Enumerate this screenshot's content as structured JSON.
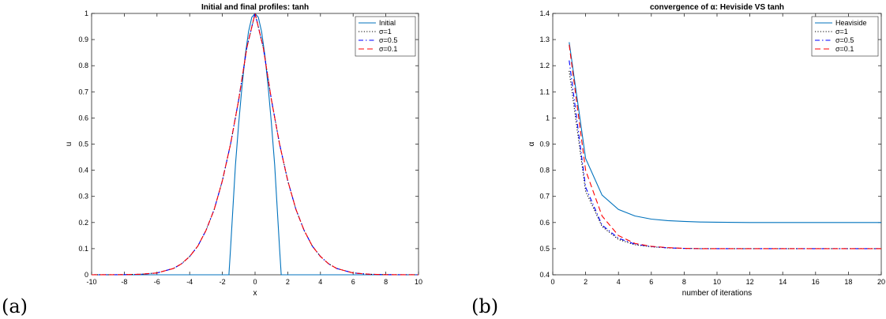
{
  "panel_labels": [
    "(a)",
    "(b)"
  ],
  "chart_data": [
    {
      "type": "line",
      "title": "Initial and final profiles: tanh",
      "xlabel": "x",
      "ylabel": "u",
      "xlim": [
        -10,
        10
      ],
      "ylim": [
        0,
        1
      ],
      "xticks": [
        -10,
        -8,
        -6,
        -4,
        -2,
        0,
        2,
        4,
        6,
        8,
        10
      ],
      "yticks": [
        0,
        0.1,
        0.2,
        0.3,
        0.4,
        0.5,
        0.6,
        0.7,
        0.8,
        0.9,
        1
      ],
      "grid": false,
      "legend_position": "top-right",
      "series": [
        {
          "name": "Initial",
          "color": "#0072BD",
          "dash": "solid",
          "x": [
            -10,
            -1.6,
            -1.5,
            -1.2,
            -1.0,
            -0.8,
            -0.6,
            -0.4,
            -0.2,
            0,
            0.2,
            0.4,
            0.6,
            0.8,
            1.0,
            1.2,
            1.5,
            1.6,
            10
          ],
          "y": [
            0,
            0,
            0.1,
            0.42,
            0.58,
            0.72,
            0.84,
            0.93,
            0.985,
            1.0,
            0.985,
            0.93,
            0.84,
            0.72,
            0.58,
            0.42,
            0.1,
            0,
            0
          ]
        },
        {
          "name": "σ=1",
          "color": "#000000",
          "dash": "dotted",
          "x": [
            -10,
            -8,
            -7,
            -6,
            -5,
            -4.5,
            -4,
            -3.5,
            -3,
            -2.5,
            -2,
            -1.5,
            -1,
            -0.5,
            0,
            0.5,
            1,
            1.5,
            2,
            2.5,
            3,
            3.5,
            4,
            4.5,
            5,
            6,
            7,
            8,
            10
          ],
          "y": [
            0,
            0.0005,
            0.002,
            0.007,
            0.024,
            0.042,
            0.07,
            0.11,
            0.17,
            0.25,
            0.36,
            0.5,
            0.67,
            0.87,
            1.0,
            0.87,
            0.67,
            0.5,
            0.36,
            0.25,
            0.17,
            0.11,
            0.07,
            0.042,
            0.024,
            0.007,
            0.002,
            0.0005,
            0
          ]
        },
        {
          "name": "σ=0.5",
          "color": "#0000FF",
          "dash": "dashdot",
          "x": [
            -10,
            -8,
            -7,
            -6,
            -5,
            -4.5,
            -4,
            -3.5,
            -3,
            -2.5,
            -2,
            -1.5,
            -1,
            -0.5,
            0,
            0.5,
            1,
            1.5,
            2,
            2.5,
            3,
            3.5,
            4,
            4.5,
            5,
            6,
            7,
            8,
            10
          ],
          "y": [
            0,
            0.0005,
            0.002,
            0.007,
            0.024,
            0.042,
            0.07,
            0.11,
            0.17,
            0.25,
            0.36,
            0.5,
            0.67,
            0.87,
            1.0,
            0.87,
            0.67,
            0.5,
            0.36,
            0.25,
            0.17,
            0.11,
            0.07,
            0.042,
            0.024,
            0.007,
            0.002,
            0.0005,
            0
          ]
        },
        {
          "name": "σ=0.1",
          "color": "#FF0000",
          "dash": "dashed",
          "x": [
            -10,
            -8,
            -7,
            -6,
            -5,
            -4.5,
            -4,
            -3.5,
            -3,
            -2.5,
            -2,
            -1.5,
            -1,
            -0.5,
            0,
            0.5,
            1,
            1.5,
            2,
            2.5,
            3,
            3.5,
            4,
            4.5,
            5,
            6,
            7,
            8,
            10
          ],
          "y": [
            0,
            0.0005,
            0.002,
            0.007,
            0.024,
            0.042,
            0.07,
            0.11,
            0.17,
            0.25,
            0.36,
            0.5,
            0.67,
            0.87,
            1.0,
            0.87,
            0.67,
            0.5,
            0.36,
            0.25,
            0.17,
            0.11,
            0.07,
            0.042,
            0.024,
            0.007,
            0.002,
            0.0005,
            0
          ]
        }
      ]
    },
    {
      "type": "line",
      "title": "convergence of α: Heviside VS tanh",
      "xlabel": "number of iterations",
      "ylabel": "α",
      "xlim": [
        0,
        20
      ],
      "ylim": [
        0.4,
        1.4
      ],
      "xticks": [
        0,
        2,
        4,
        6,
        8,
        10,
        12,
        14,
        16,
        18,
        20
      ],
      "yticks": [
        0.4,
        0.5,
        0.6,
        0.7,
        0.8,
        0.9,
        1,
        1.1,
        1.2,
        1.3,
        1.4
      ],
      "grid": false,
      "legend_position": "top-right",
      "series": [
        {
          "name": "Heaviside",
          "color": "#0072BD",
          "dash": "solid",
          "x": [
            1,
            2,
            3,
            4,
            5,
            6,
            7,
            8,
            9,
            10,
            12,
            14,
            16,
            18,
            20
          ],
          "y": [
            1.29,
            0.845,
            0.705,
            0.65,
            0.625,
            0.613,
            0.607,
            0.604,
            0.602,
            0.601,
            0.6,
            0.6,
            0.6,
            0.6,
            0.6
          ]
        },
        {
          "name": "σ=1",
          "color": "#000000",
          "dash": "dotted",
          "x": [
            1,
            2,
            3,
            4,
            5,
            6,
            7,
            8,
            9,
            10,
            12,
            14,
            16,
            18,
            20
          ],
          "y": [
            1.18,
            0.72,
            0.585,
            0.535,
            0.515,
            0.507,
            0.503,
            0.501,
            0.5,
            0.5,
            0.5,
            0.5,
            0.5,
            0.5,
            0.5
          ]
        },
        {
          "name": "σ=0.5",
          "color": "#0000FF",
          "dash": "dashdot",
          "x": [
            1,
            2,
            3,
            4,
            5,
            6,
            7,
            8,
            9,
            10,
            12,
            14,
            16,
            18,
            20
          ],
          "y": [
            1.22,
            0.735,
            0.59,
            0.54,
            0.517,
            0.508,
            0.503,
            0.501,
            0.5,
            0.5,
            0.5,
            0.5,
            0.5,
            0.5,
            0.5
          ]
        },
        {
          "name": "σ=0.1",
          "color": "#FF0000",
          "dash": "dashed",
          "x": [
            1,
            2,
            3,
            4,
            5,
            6,
            7,
            8,
            9,
            10,
            12,
            14,
            16,
            18,
            20
          ],
          "y": [
            1.28,
            0.8,
            0.625,
            0.55,
            0.52,
            0.509,
            0.504,
            0.501,
            0.5,
            0.5,
            0.5,
            0.5,
            0.5,
            0.5,
            0.5
          ]
        }
      ]
    }
  ]
}
